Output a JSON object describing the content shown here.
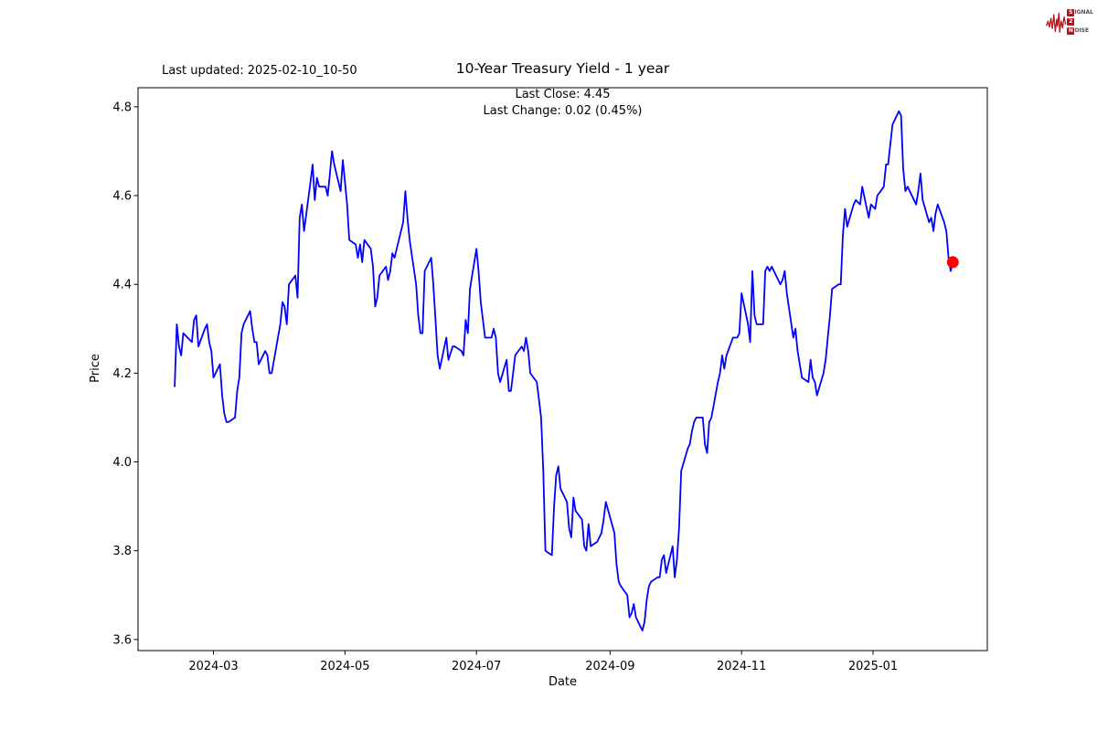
{
  "header": {
    "last_updated": "Last updated: 2025-02-10_10-50",
    "logo": {
      "row1_boxed": "S",
      "row1_rest": "IGNAL",
      "row2_boxed": "2",
      "row2_rest": "",
      "row3_boxed": "N",
      "row3_rest": "OISE",
      "accent_color": "#b5121b"
    }
  },
  "chart_data": {
    "type": "line",
    "title": "10-Year Treasury Yield - 1 year",
    "subtitle_line1": "Last Close: 4.45",
    "subtitle_line2": "Last Change: 0.02 (0.45%)",
    "xlabel": "Date",
    "ylabel": "Price",
    "last_close": 4.45,
    "last_change_abs": 0.02,
    "last_change_pct": "0.45%",
    "line_color": "#0000ff",
    "marker_color": "#ff0000",
    "grid": false,
    "legend": "none",
    "ylim": [
      3.575,
      4.843
    ],
    "y_ticks": [
      3.6,
      3.8,
      4.0,
      4.2,
      4.4,
      4.6,
      4.8
    ],
    "y_tick_labels": [
      "3.6",
      "3.8",
      "4.0",
      "4.2",
      "4.4",
      "4.6",
      "4.8"
    ],
    "xlim_dates": [
      "2024-01-26",
      "2025-02-23"
    ],
    "x_tick_dates": [
      "2024-03-01",
      "2024-05-01",
      "2024-07-01",
      "2024-09-01",
      "2024-11-01",
      "2025-01-01"
    ],
    "x_tick_labels": [
      "2024-03",
      "2024-05",
      "2024-07",
      "2024-09",
      "2024-11",
      "2025-01"
    ],
    "marker_point": {
      "date": "2025-02-07",
      "value": 4.45
    },
    "series": [
      {
        "name": "10-Year Treasury Yield",
        "points": [
          [
            "2024-02-12",
            4.17
          ],
          [
            "2024-02-13",
            4.31
          ],
          [
            "2024-02-14",
            4.26
          ],
          [
            "2024-02-15",
            4.24
          ],
          [
            "2024-02-16",
            4.29
          ],
          [
            "2024-02-20",
            4.27
          ],
          [
            "2024-02-21",
            4.32
          ],
          [
            "2024-02-22",
            4.33
          ],
          [
            "2024-02-23",
            4.26
          ],
          [
            "2024-02-26",
            4.3
          ],
          [
            "2024-02-27",
            4.31
          ],
          [
            "2024-02-28",
            4.27
          ],
          [
            "2024-02-29",
            4.25
          ],
          [
            "2024-03-01",
            4.19
          ],
          [
            "2024-03-04",
            4.22
          ],
          [
            "2024-03-05",
            4.15
          ],
          [
            "2024-03-06",
            4.11
          ],
          [
            "2024-03-07",
            4.09
          ],
          [
            "2024-03-08",
            4.09
          ],
          [
            "2024-03-11",
            4.1
          ],
          [
            "2024-03-12",
            4.16
          ],
          [
            "2024-03-13",
            4.19
          ],
          [
            "2024-03-14",
            4.29
          ],
          [
            "2024-03-15",
            4.31
          ],
          [
            "2024-03-18",
            4.34
          ],
          [
            "2024-03-19",
            4.3
          ],
          [
            "2024-03-20",
            4.27
          ],
          [
            "2024-03-21",
            4.27
          ],
          [
            "2024-03-22",
            4.22
          ],
          [
            "2024-03-25",
            4.25
          ],
          [
            "2024-03-26",
            4.24
          ],
          [
            "2024-03-27",
            4.2
          ],
          [
            "2024-03-28",
            4.2
          ],
          [
            "2024-04-01",
            4.31
          ],
          [
            "2024-04-02",
            4.36
          ],
          [
            "2024-04-03",
            4.35
          ],
          [
            "2024-04-04",
            4.31
          ],
          [
            "2024-04-05",
            4.4
          ],
          [
            "2024-04-08",
            4.42
          ],
          [
            "2024-04-09",
            4.37
          ],
          [
            "2024-04-10",
            4.55
          ],
          [
            "2024-04-11",
            4.58
          ],
          [
            "2024-04-12",
            4.52
          ],
          [
            "2024-04-15",
            4.63
          ],
          [
            "2024-04-16",
            4.67
          ],
          [
            "2024-04-17",
            4.59
          ],
          [
            "2024-04-18",
            4.64
          ],
          [
            "2024-04-19",
            4.62
          ],
          [
            "2024-04-22",
            4.62
          ],
          [
            "2024-04-23",
            4.6
          ],
          [
            "2024-04-24",
            4.65
          ],
          [
            "2024-04-25",
            4.7
          ],
          [
            "2024-04-26",
            4.67
          ],
          [
            "2024-04-29",
            4.61
          ],
          [
            "2024-04-30",
            4.68
          ],
          [
            "2024-05-01",
            4.63
          ],
          [
            "2024-05-02",
            4.58
          ],
          [
            "2024-05-03",
            4.5
          ],
          [
            "2024-05-06",
            4.49
          ],
          [
            "2024-05-07",
            4.46
          ],
          [
            "2024-05-08",
            4.49
          ],
          [
            "2024-05-09",
            4.45
          ],
          [
            "2024-05-10",
            4.5
          ],
          [
            "2024-05-13",
            4.48
          ],
          [
            "2024-05-14",
            4.44
          ],
          [
            "2024-05-15",
            4.35
          ],
          [
            "2024-05-16",
            4.37
          ],
          [
            "2024-05-17",
            4.42
          ],
          [
            "2024-05-20",
            4.44
          ],
          [
            "2024-05-21",
            4.41
          ],
          [
            "2024-05-22",
            4.43
          ],
          [
            "2024-05-23",
            4.47
          ],
          [
            "2024-05-24",
            4.46
          ],
          [
            "2024-05-28",
            4.54
          ],
          [
            "2024-05-29",
            4.61
          ],
          [
            "2024-05-30",
            4.55
          ],
          [
            "2024-05-31",
            4.5
          ],
          [
            "2024-06-03",
            4.4
          ],
          [
            "2024-06-04",
            4.33
          ],
          [
            "2024-06-05",
            4.29
          ],
          [
            "2024-06-06",
            4.29
          ],
          [
            "2024-06-07",
            4.43
          ],
          [
            "2024-06-10",
            4.46
          ],
          [
            "2024-06-11",
            4.4
          ],
          [
            "2024-06-12",
            4.32
          ],
          [
            "2024-06-13",
            4.24
          ],
          [
            "2024-06-14",
            4.21
          ],
          [
            "2024-06-17",
            4.28
          ],
          [
            "2024-06-18",
            4.23
          ],
          [
            "2024-06-20",
            4.26
          ],
          [
            "2024-06-21",
            4.26
          ],
          [
            "2024-06-24",
            4.25
          ],
          [
            "2024-06-25",
            4.24
          ],
          [
            "2024-06-26",
            4.32
          ],
          [
            "2024-06-27",
            4.29
          ],
          [
            "2024-06-28",
            4.39
          ],
          [
            "2024-07-01",
            4.48
          ],
          [
            "2024-07-02",
            4.43
          ],
          [
            "2024-07-03",
            4.36
          ],
          [
            "2024-07-05",
            4.28
          ],
          [
            "2024-07-08",
            4.28
          ],
          [
            "2024-07-09",
            4.3
          ],
          [
            "2024-07-10",
            4.28
          ],
          [
            "2024-07-11",
            4.2
          ],
          [
            "2024-07-12",
            4.18
          ],
          [
            "2024-07-15",
            4.23
          ],
          [
            "2024-07-16",
            4.16
          ],
          [
            "2024-07-17",
            4.16
          ],
          [
            "2024-07-18",
            4.2
          ],
          [
            "2024-07-19",
            4.24
          ],
          [
            "2024-07-22",
            4.26
          ],
          [
            "2024-07-23",
            4.25
          ],
          [
            "2024-07-24",
            4.28
          ],
          [
            "2024-07-25",
            4.25
          ],
          [
            "2024-07-26",
            4.2
          ],
          [
            "2024-07-29",
            4.18
          ],
          [
            "2024-07-30",
            4.14
          ],
          [
            "2024-07-31",
            4.1
          ],
          [
            "2024-08-01",
            3.98
          ],
          [
            "2024-08-02",
            3.8
          ],
          [
            "2024-08-05",
            3.79
          ],
          [
            "2024-08-06",
            3.9
          ],
          [
            "2024-08-07",
            3.97
          ],
          [
            "2024-08-08",
            3.99
          ],
          [
            "2024-08-09",
            3.94
          ],
          [
            "2024-08-12",
            3.91
          ],
          [
            "2024-08-13",
            3.85
          ],
          [
            "2024-08-14",
            3.83
          ],
          [
            "2024-08-15",
            3.92
          ],
          [
            "2024-08-16",
            3.89
          ],
          [
            "2024-08-19",
            3.87
          ],
          [
            "2024-08-20",
            3.81
          ],
          [
            "2024-08-21",
            3.8
          ],
          [
            "2024-08-22",
            3.86
          ],
          [
            "2024-08-23",
            3.81
          ],
          [
            "2024-08-26",
            3.82
          ],
          [
            "2024-08-27",
            3.83
          ],
          [
            "2024-08-28",
            3.84
          ],
          [
            "2024-08-29",
            3.87
          ],
          [
            "2024-08-30",
            3.91
          ],
          [
            "2024-09-03",
            3.84
          ],
          [
            "2024-09-04",
            3.77
          ],
          [
            "2024-09-05",
            3.73
          ],
          [
            "2024-09-06",
            3.72
          ],
          [
            "2024-09-09",
            3.7
          ],
          [
            "2024-09-10",
            3.65
          ],
          [
            "2024-09-11",
            3.66
          ],
          [
            "2024-09-12",
            3.68
          ],
          [
            "2024-09-13",
            3.65
          ],
          [
            "2024-09-16",
            3.62
          ],
          [
            "2024-09-17",
            3.64
          ],
          [
            "2024-09-18",
            3.69
          ],
          [
            "2024-09-19",
            3.72
          ],
          [
            "2024-09-20",
            3.73
          ],
          [
            "2024-09-23",
            3.74
          ],
          [
            "2024-09-24",
            3.74
          ],
          [
            "2024-09-25",
            3.78
          ],
          [
            "2024-09-26",
            3.79
          ],
          [
            "2024-09-27",
            3.75
          ],
          [
            "2024-09-30",
            3.81
          ],
          [
            "2024-10-01",
            3.74
          ],
          [
            "2024-10-02",
            3.78
          ],
          [
            "2024-10-03",
            3.85
          ],
          [
            "2024-10-04",
            3.98
          ],
          [
            "2024-10-07",
            4.03
          ],
          [
            "2024-10-08",
            4.04
          ],
          [
            "2024-10-09",
            4.07
          ],
          [
            "2024-10-10",
            4.09
          ],
          [
            "2024-10-11",
            4.1
          ],
          [
            "2024-10-14",
            4.1
          ],
          [
            "2024-10-15",
            4.04
          ],
          [
            "2024-10-16",
            4.02
          ],
          [
            "2024-10-17",
            4.09
          ],
          [
            "2024-10-18",
            4.1
          ],
          [
            "2024-10-21",
            4.18
          ],
          [
            "2024-10-22",
            4.2
          ],
          [
            "2024-10-23",
            4.24
          ],
          [
            "2024-10-24",
            4.21
          ],
          [
            "2024-10-25",
            4.24
          ],
          [
            "2024-10-28",
            4.28
          ],
          [
            "2024-10-29",
            4.28
          ],
          [
            "2024-10-30",
            4.28
          ],
          [
            "2024-10-31",
            4.29
          ],
          [
            "2024-11-01",
            4.38
          ],
          [
            "2024-11-04",
            4.31
          ],
          [
            "2024-11-05",
            4.27
          ],
          [
            "2024-11-06",
            4.43
          ],
          [
            "2024-11-07",
            4.33
          ],
          [
            "2024-11-08",
            4.31
          ],
          [
            "2024-11-11",
            4.31
          ],
          [
            "2024-11-12",
            4.43
          ],
          [
            "2024-11-13",
            4.44
          ],
          [
            "2024-11-14",
            4.43
          ],
          [
            "2024-11-15",
            4.44
          ],
          [
            "2024-11-18",
            4.41
          ],
          [
            "2024-11-19",
            4.4
          ],
          [
            "2024-11-20",
            4.41
          ],
          [
            "2024-11-21",
            4.43
          ],
          [
            "2024-11-22",
            4.38
          ],
          [
            "2024-11-25",
            4.28
          ],
          [
            "2024-11-26",
            4.3
          ],
          [
            "2024-11-27",
            4.25
          ],
          [
            "2024-11-29",
            4.19
          ],
          [
            "2024-12-02",
            4.18
          ],
          [
            "2024-12-03",
            4.23
          ],
          [
            "2024-12-04",
            4.19
          ],
          [
            "2024-12-05",
            4.18
          ],
          [
            "2024-12-06",
            4.15
          ],
          [
            "2024-12-09",
            4.2
          ],
          [
            "2024-12-10",
            4.23
          ],
          [
            "2024-12-11",
            4.28
          ],
          [
            "2024-12-12",
            4.33
          ],
          [
            "2024-12-13",
            4.39
          ],
          [
            "2024-12-16",
            4.4
          ],
          [
            "2024-12-17",
            4.4
          ],
          [
            "2024-12-18",
            4.51
          ],
          [
            "2024-12-19",
            4.57
          ],
          [
            "2024-12-20",
            4.53
          ],
          [
            "2024-12-23",
            4.58
          ],
          [
            "2024-12-24",
            4.59
          ],
          [
            "2024-12-26",
            4.58
          ],
          [
            "2024-12-27",
            4.62
          ],
          [
            "2024-12-30",
            4.55
          ],
          [
            "2024-12-31",
            4.58
          ],
          [
            "2025-01-02",
            4.57
          ],
          [
            "2025-01-03",
            4.6
          ],
          [
            "2025-01-06",
            4.62
          ],
          [
            "2025-01-07",
            4.67
          ],
          [
            "2025-01-08",
            4.67
          ],
          [
            "2025-01-10",
            4.76
          ],
          [
            "2025-01-13",
            4.79
          ],
          [
            "2025-01-14",
            4.78
          ],
          [
            "2025-01-15",
            4.66
          ],
          [
            "2025-01-16",
            4.61
          ],
          [
            "2025-01-17",
            4.62
          ],
          [
            "2025-01-21",
            4.58
          ],
          [
            "2025-01-22",
            4.61
          ],
          [
            "2025-01-23",
            4.65
          ],
          [
            "2025-01-24",
            4.59
          ],
          [
            "2025-01-27",
            4.54
          ],
          [
            "2025-01-28",
            4.55
          ],
          [
            "2025-01-29",
            4.52
          ],
          [
            "2025-01-30",
            4.56
          ],
          [
            "2025-01-31",
            4.58
          ],
          [
            "2025-02-03",
            4.54
          ],
          [
            "2025-02-04",
            4.52
          ],
          [
            "2025-02-05",
            4.46
          ],
          [
            "2025-02-06",
            4.43
          ],
          [
            "2025-02-07",
            4.45
          ]
        ]
      }
    ]
  }
}
